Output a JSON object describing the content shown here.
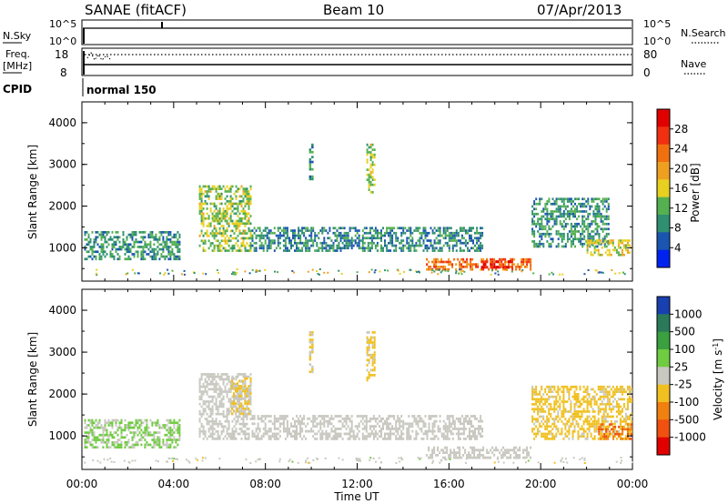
{
  "header": {
    "site": "SANAE (fitACF)",
    "beam": "Beam 10",
    "date": "07/Apr/2013"
  },
  "top_panels": {
    "nsky_label": "N.Sky",
    "nsearch_label": "N.Search",
    "nsky_ticks": [
      "10^5",
      "10^0"
    ],
    "nsearch_ticks": [
      "10^5",
      "10^0"
    ],
    "freq_label_1": "Freq.",
    "freq_label_2": "[MHz]",
    "freq_ticks": [
      "18",
      "8"
    ],
    "nave_label": "Nave",
    "nave_ticks": [
      "80",
      "0"
    ],
    "cpid_label": "CPID",
    "cpid_value": "normal 150"
  },
  "colors": {
    "power_scale": [
      "#0022ee",
      "#1a55b0",
      "#2e9070",
      "#55b050",
      "#e8d020",
      "#f0a020",
      "#f07010",
      "#f03010",
      "#e00000"
    ],
    "velocity_scale": [
      "#1840b0",
      "#2a7a5a",
      "#3aa040",
      "#70cc40",
      "#c8c8c0",
      "#f0c020",
      "#f08010",
      "#f05010",
      "#e00000"
    ]
  },
  "chart_data": [
    {
      "type": "heatmap",
      "title": "",
      "ylabel": "Slant Range [km]",
      "xlabel": "",
      "ylim": [
        200,
        4500
      ],
      "xlim": [
        0,
        24
      ],
      "yticks": [
        "4000",
        "3000",
        "2000",
        "1000"
      ],
      "colorbar": {
        "label": "Power [dB]",
        "ticks": [
          "28",
          "24",
          "20",
          "16",
          "12",
          "8",
          "4"
        ],
        "range": [
          0,
          30
        ]
      },
      "regions": [
        {
          "x0": 0.1,
          "x1": 4.3,
          "r0": 700,
          "r1": 1400,
          "value": 9
        },
        {
          "x0": 5.1,
          "x1": 7.4,
          "r0": 900,
          "r1": 2500,
          "value": 13
        },
        {
          "x0": 7.4,
          "x1": 17.5,
          "r0": 900,
          "r1": 1500,
          "value": 8
        },
        {
          "x0": 15.0,
          "x1": 19.6,
          "r0": 450,
          "r1": 750,
          "value": 22
        },
        {
          "x0": 17.4,
          "x1": 18.8,
          "r0": 500,
          "r1": 700,
          "value": 28
        },
        {
          "x0": 19.6,
          "x1": 23.0,
          "r0": 1000,
          "r1": 2200,
          "value": 9
        },
        {
          "x0": 22.0,
          "x1": 24.0,
          "r0": 800,
          "r1": 1200,
          "value": 15
        },
        {
          "x0": 9.9,
          "x1": 10.1,
          "r0": 2500,
          "r1": 3500,
          "value": 8
        },
        {
          "x0": 12.4,
          "x1": 12.8,
          "r0": 2300,
          "r1": 3500,
          "value": 13
        }
      ]
    },
    {
      "type": "heatmap",
      "title": "",
      "ylabel": "Slant Range [km]",
      "xlabel": "Time UT",
      "ylim": [
        200,
        4500
      ],
      "xlim": [
        0,
        24
      ],
      "yticks": [
        "4000",
        "3000",
        "2000",
        "1000"
      ],
      "xticks": [
        "00:00",
        "04:00",
        "08:00",
        "12:00",
        "16:00",
        "20:00",
        "00:00"
      ],
      "colorbar": {
        "label": "Velocity [m s",
        "label_sup": "-1",
        "label_end": "]",
        "ticks": [
          "1000",
          "500",
          "100",
          "25",
          "-25",
          "-100",
          "-500",
          "-1000"
        ],
        "range": [
          -1200,
          1200
        ]
      },
      "regions": [
        {
          "x0": 0.1,
          "x1": 4.3,
          "r0": 700,
          "r1": 1400,
          "value": 150
        },
        {
          "x0": 5.1,
          "x1": 7.4,
          "r0": 900,
          "r1": 2500,
          "value": 50
        },
        {
          "x0": 6.5,
          "x1": 7.4,
          "r0": 1500,
          "r1": 2400,
          "value": -150
        },
        {
          "x0": 7.4,
          "x1": 17.5,
          "r0": 900,
          "r1": 1500,
          "value": 0
        },
        {
          "x0": 15.0,
          "x1": 19.6,
          "r0": 450,
          "r1": 750,
          "value": 80
        },
        {
          "x0": 19.6,
          "x1": 24.0,
          "r0": 900,
          "r1": 2200,
          "value": -200
        },
        {
          "x0": 22.5,
          "x1": 24.0,
          "r0": 900,
          "r1": 1300,
          "value": -600
        },
        {
          "x0": 9.9,
          "x1": 10.1,
          "r0": 2500,
          "r1": 3500,
          "value": -150
        },
        {
          "x0": 12.4,
          "x1": 12.8,
          "r0": 2300,
          "r1": 3500,
          "value": -200
        }
      ]
    }
  ]
}
